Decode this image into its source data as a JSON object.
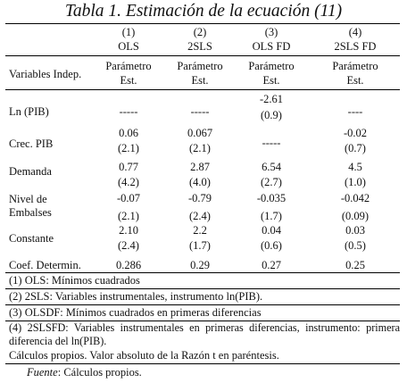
{
  "title": "Tabla 1. Estimación de la ecuación (11)",
  "columns": [
    {
      "num": "(1)",
      "name": "OLS",
      "param": "Parámetro",
      "est": "Est."
    },
    {
      "num": "(2)",
      "name": "2SLS",
      "param": "Parámetro",
      "est": "Est."
    },
    {
      "num": "(3)",
      "name": "OLS FD",
      "param": "Parámetro",
      "est": "Est."
    },
    {
      "num": "(4)",
      "name": "2SLS FD",
      "param": "Parámetro",
      "est": "Est."
    }
  ],
  "row_header": "Variables Indep.",
  "rows": [
    {
      "label": "Ln (PIB)",
      "est": [
        "-----",
        "-----",
        "-2.61",
        "----"
      ],
      "t": [
        "",
        "",
        "(0.9)",
        ""
      ]
    },
    {
      "label": "Crec. PIB",
      "est": [
        "0.06",
        "0.067",
        "-----",
        "-0.02"
      ],
      "t": [
        "(2.1)",
        "(2.1)",
        "",
        "(0.7)"
      ]
    },
    {
      "label": "Demanda",
      "est": [
        "0.77",
        "2.87",
        "6.54",
        "4.5"
      ],
      "t": [
        "(4.2)",
        "(4.0)",
        "(2.7)",
        "(1.0)"
      ]
    },
    {
      "label": "Nivel de",
      "label2": "Embalses",
      "est": [
        "-0.07",
        "-0.79",
        "-0.035",
        "-0.042"
      ],
      "t": [
        "(2.1)",
        "(2.4)",
        "(1.7)",
        "(0.09)"
      ]
    },
    {
      "label": "Constante",
      "est": [
        "2.10",
        "2.2",
        "0.04",
        "0.03"
      ],
      "t": [
        "(2.4)",
        "(1.7)",
        "(0.6)",
        "(0.5)"
      ]
    },
    {
      "label": "Coef. Determin.",
      "est": [
        "0.286",
        "0.29",
        "0.27",
        "0.25"
      ]
    }
  ],
  "notes": [
    "(1) OLS: Mínimos cuadrados",
    "(2) 2SLS: Variables instrumentales, instrumento ln(PIB).",
    "(3) OLSDF: Mínimos cuadrados en primeras diferencias",
    "(4) 2SLSFD: Variables instrumentales en primeras diferencias, instrumento: primera diferencia del ln(PIB).",
    "Cálculos propios. Valor absoluto de la Razón t en paréntesis."
  ],
  "source_label": "Fuente",
  "source_text": ": Cálculos propios."
}
